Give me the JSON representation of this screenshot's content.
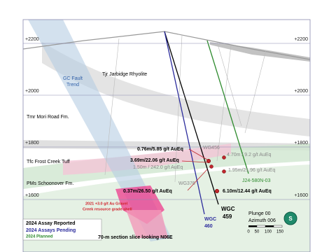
{
  "elevations": [
    "+2200",
    "+2000",
    "+1800",
    "+1600"
  ],
  "fault": {
    "lines": [
      "GC Fault",
      "Trend"
    ]
  },
  "formations": [
    "Tjr Jarbidge Rhyolite",
    "Tmr Mori Road Fm.",
    "Tfc Frost Creek Tuff",
    "PMs Schoonover Fm."
  ],
  "intercepts": [
    "0.76m/5.85 g/t AuEq",
    "4.70m / 9.2 g/t AuEq",
    "3.69m/22.06 g/t AuEq",
    "1.50m / 242.0 g/t AuEq",
    "1.95m/21.96 g/t AuEq",
    "0.37m/26.50 g/t AuEq",
    "6.10m/12.44 g/t AuEq"
  ],
  "holes": {
    "wg456": "WG456",
    "wg376": "WG376",
    "j24": "J24-580N-03",
    "wgc460": [
      "WGC",
      "460"
    ],
    "wgc459": [
      "WGC",
      "459"
    ]
  },
  "shell": [
    "2021 +3.0 g/t Au Gravel",
    "Creek resource grade shell"
  ],
  "legend": [
    "2024 Assay Reported",
    "2024 Assays Pending",
    "2024 Planned"
  ],
  "section": "70-m section slice looking N06E",
  "orientation": [
    "Plunge 00",
    "Azimuth 006"
  ],
  "scale": [
    "0",
    "50",
    "100",
    "150"
  ],
  "compass": "S"
}
